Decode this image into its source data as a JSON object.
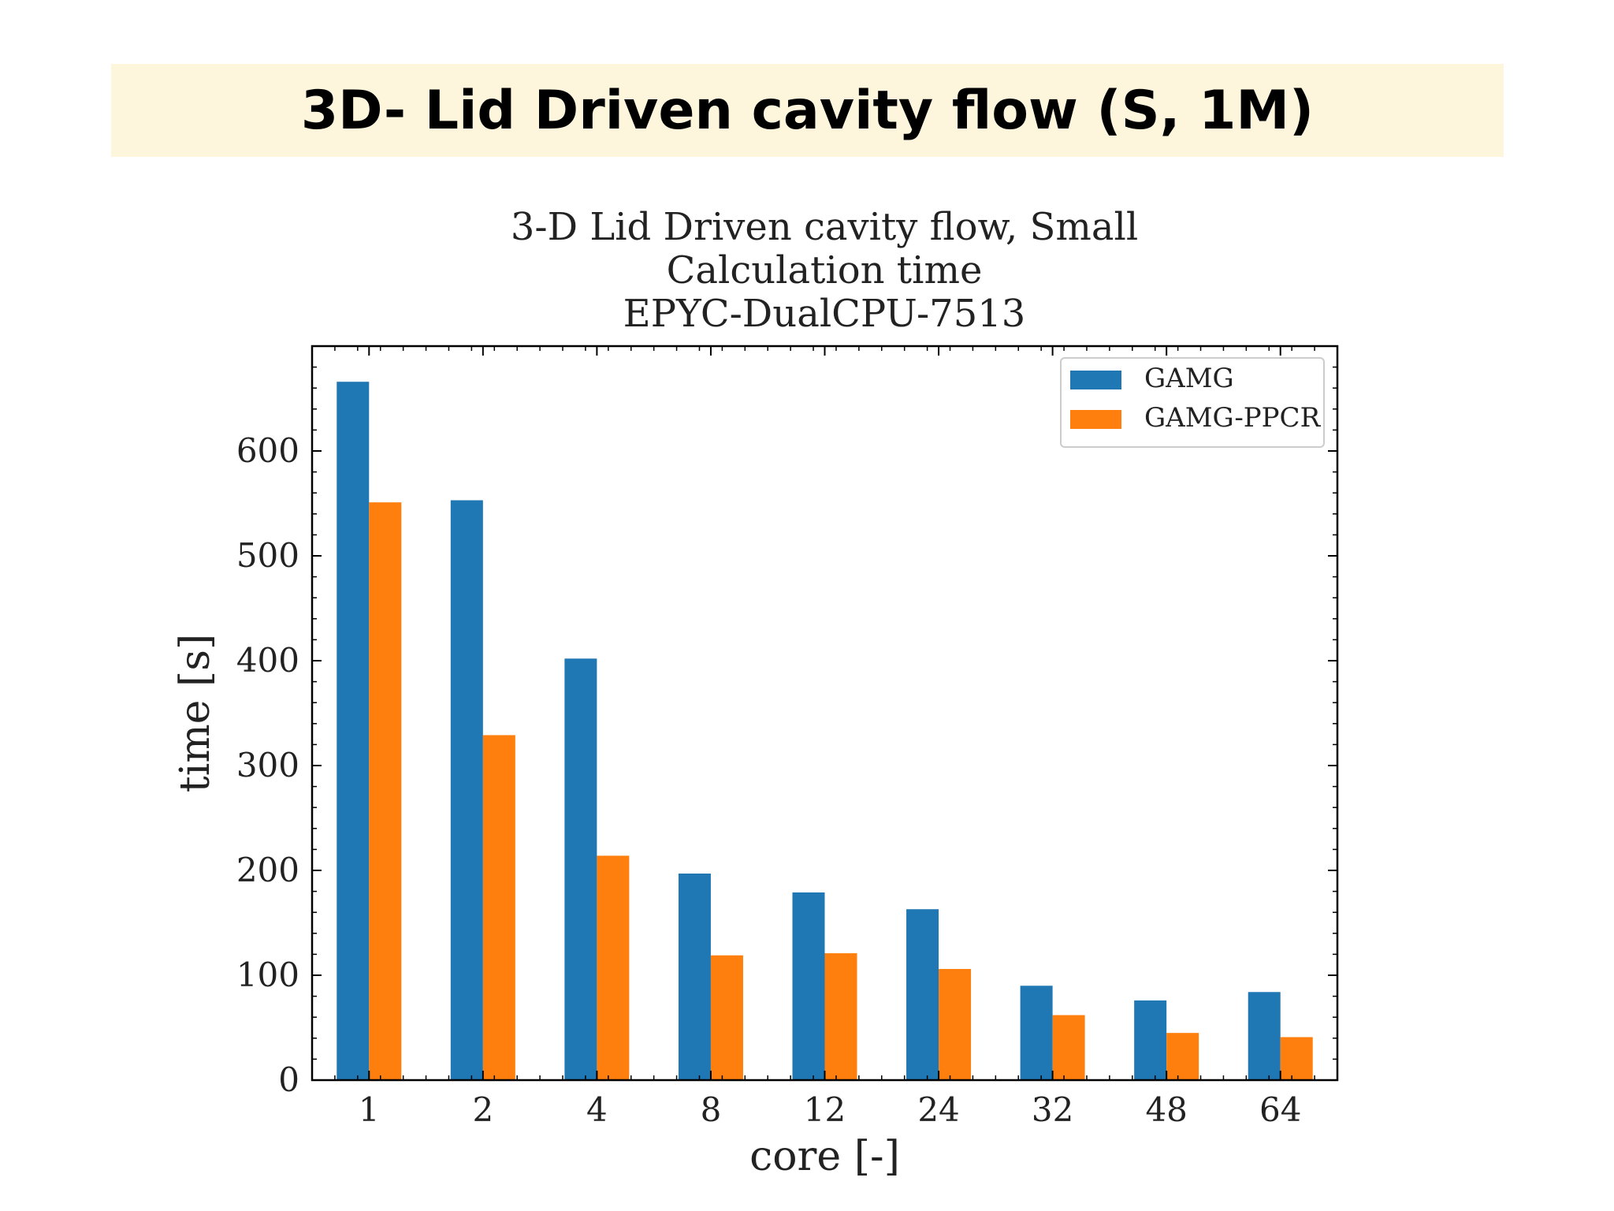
{
  "slide": {
    "title": "3D- Lid Driven cavity flow (S, 1M)"
  },
  "chart_data": {
    "type": "bar",
    "title": [
      "3-D Lid Driven cavity flow, Small",
      "Calculation time",
      "EPYC-DualCPU-7513"
    ],
    "xlabel": "core [-]",
    "ylabel": "time [s]",
    "categories": [
      "1",
      "2",
      "4",
      "8",
      "12",
      "24",
      "32",
      "48",
      "64"
    ],
    "series": [
      {
        "name": "GAMG",
        "color": "#1f77b4",
        "values": [
          666,
          553,
          402,
          197,
          179,
          163,
          90,
          76,
          84
        ]
      },
      {
        "name": "GAMG-PPCR",
        "color": "#ff7f0e",
        "values": [
          551,
          329,
          214,
          119,
          121,
          106,
          62,
          45,
          41
        ]
      }
    ],
    "ylim": [
      0,
      700
    ],
    "yticks": [
      0,
      100,
      200,
      300,
      400,
      500,
      600
    ],
    "legend_position": "top-right",
    "grid": false
  }
}
